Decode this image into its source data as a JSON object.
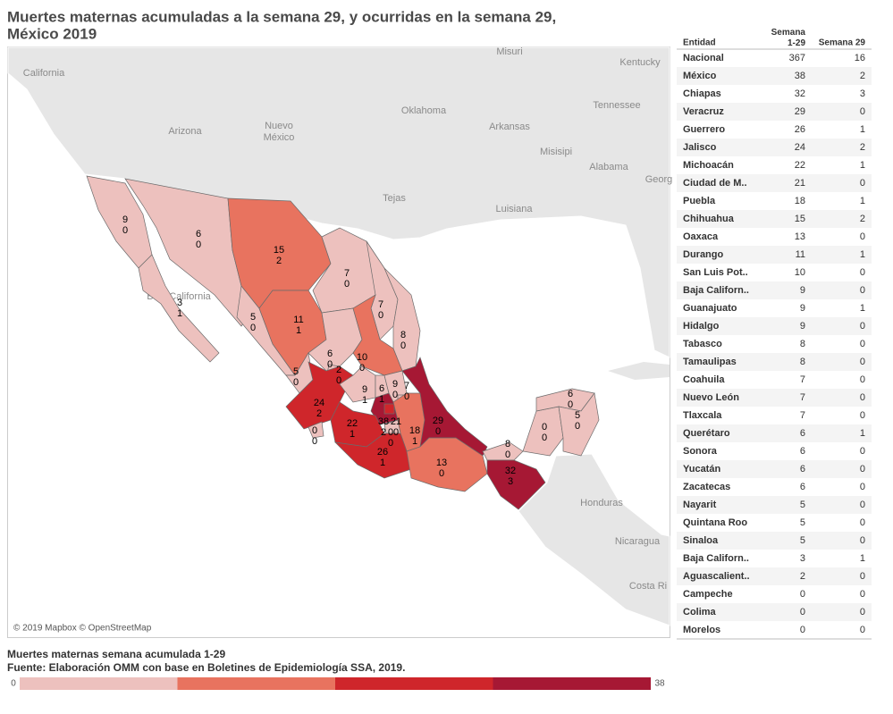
{
  "header": {
    "title_line1": "Muertes maternas acumuladas a la semana 29, y ocurridas en la semana 29,",
    "title_line2": "México 2019"
  },
  "table": {
    "columns": [
      "Entidad",
      "Semana 1-29",
      "Semana 29"
    ],
    "rows": [
      [
        "Nacional",
        367,
        16
      ],
      [
        "México",
        38,
        2
      ],
      [
        "Chiapas",
        32,
        3
      ],
      [
        "Veracruz",
        29,
        0
      ],
      [
        "Guerrero",
        26,
        1
      ],
      [
        "Jalisco",
        24,
        2
      ],
      [
        "Michoacán",
        22,
        1
      ],
      [
        "Ciudad de M..",
        21,
        0
      ],
      [
        "Puebla",
        18,
        1
      ],
      [
        "Chihuahua",
        15,
        2
      ],
      [
        "Oaxaca",
        13,
        0
      ],
      [
        "Durango",
        11,
        1
      ],
      [
        "San Luis Pot..",
        10,
        0
      ],
      [
        "Baja Californ..",
        9,
        0
      ],
      [
        "Guanajuato",
        9,
        1
      ],
      [
        "Hidalgo",
        9,
        0
      ],
      [
        "Tabasco",
        8,
        0
      ],
      [
        "Tamaulipas",
        8,
        0
      ],
      [
        "Coahuila",
        7,
        0
      ],
      [
        "Nuevo León",
        7,
        0
      ],
      [
        "Tlaxcala",
        7,
        0
      ],
      [
        "Querétaro",
        6,
        1
      ],
      [
        "Sonora",
        6,
        0
      ],
      [
        "Yucatán",
        6,
        0
      ],
      [
        "Zacatecas",
        6,
        0
      ],
      [
        "Nayarit",
        5,
        0
      ],
      [
        "Quintana Roo",
        5,
        0
      ],
      [
        "Sinaloa",
        5,
        0
      ],
      [
        "Baja Californ..",
        3,
        1
      ],
      [
        "Aguascalient..",
        2,
        0
      ],
      [
        "Campeche",
        0,
        0
      ],
      [
        "Colima",
        0,
        0
      ],
      [
        "Morelos",
        0,
        0
      ]
    ]
  },
  "map": {
    "attribution": "© 2019 Mapbox © OpenStreetMap",
    "place_labels": [
      "California",
      "Arizona",
      "Nuevo",
      "México",
      "Oklahoma",
      "Arkansas",
      "Tennessee",
      "Misisipi",
      "Alabama",
      "Georg",
      "Tejas",
      "Luisiana",
      "Misuri",
      "Kentucky",
      "Honduras",
      "Nicaragua",
      "Costa Ri",
      "Baja California"
    ]
  },
  "legend": {
    "title": "Muertes maternas semana acumulada 1-29",
    "source": "Fuente: Elaboración OMM con base en Boletines de Epidemiología SSA, 2019.",
    "min": 0,
    "max": 38,
    "colors": [
      "#edc1be",
      "#e8735f",
      "#cf262b",
      "#a61834"
    ]
  }
}
